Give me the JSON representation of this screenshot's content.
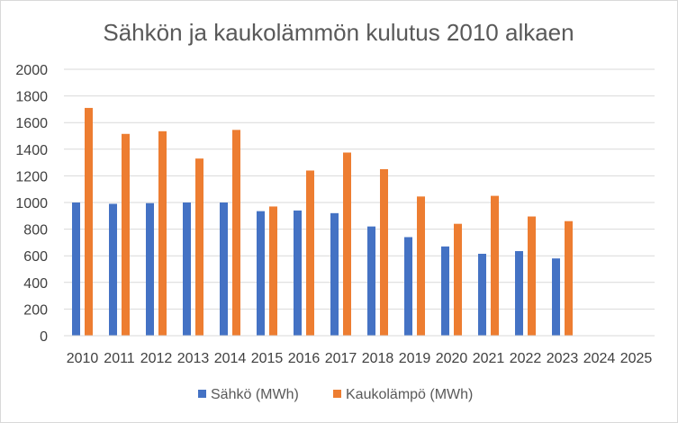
{
  "chart_data": {
    "type": "bar",
    "title": "Sähkön ja kaukolämmön kulutus 2010 alkaen",
    "xlabel": "",
    "ylabel": "",
    "categories": [
      "2010",
      "2011",
      "2012",
      "2013",
      "2014",
      "2015",
      "2016",
      "2017",
      "2018",
      "2019",
      "2020",
      "2021",
      "2022",
      "2023",
      "2024",
      "2025"
    ],
    "ylim": [
      0,
      2000
    ],
    "yticks": [
      "0",
      "200",
      "400",
      "600",
      "800",
      "1000",
      "1200",
      "1400",
      "1600",
      "1800",
      "2000"
    ],
    "grid": true,
    "legend_position": "bottom",
    "series": [
      {
        "name": "Sähkö (MWh)",
        "color": "#4472C4",
        "values": [
          1000,
          990,
          995,
          1000,
          1000,
          935,
          940,
          920,
          820,
          740,
          670,
          615,
          635,
          580,
          null,
          null
        ]
      },
      {
        "name": "Kaukolämpö (MWh)",
        "color": "#ED7D31",
        "values": [
          1710,
          1515,
          1535,
          1330,
          1545,
          970,
          1240,
          1375,
          1250,
          1045,
          840,
          1050,
          895,
          860,
          null,
          null
        ]
      }
    ]
  }
}
